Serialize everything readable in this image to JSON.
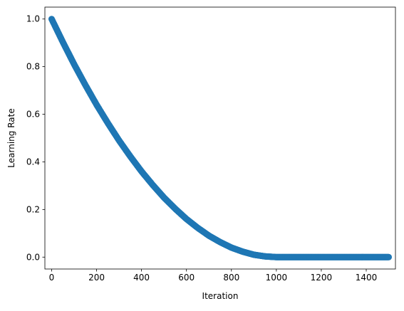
{
  "chart_data": {
    "type": "scatter",
    "title": "",
    "xlabel": "Iteration",
    "ylabel": "Learning Rate",
    "xlim": [
      -30,
      1530
    ],
    "ylim": [
      -0.05,
      1.05
    ],
    "xticks": [
      0,
      200,
      400,
      600,
      800,
      1000,
      1200,
      1400
    ],
    "yticks": [
      0.0,
      0.2,
      0.4,
      0.6,
      0.8,
      1.0
    ],
    "xtick_labels": [
      "0",
      "200",
      "400",
      "600",
      "800",
      "1000",
      "1200",
      "1400"
    ],
    "ytick_labels": [
      "0.0",
      "0.2",
      "0.4",
      "0.6",
      "0.8",
      "1.0"
    ],
    "grid": false,
    "legend": "none",
    "series": [
      {
        "color": "#1f77b4",
        "marker": "circle",
        "x": [
          0,
          50,
          100,
          150,
          200,
          250,
          300,
          350,
          400,
          450,
          500,
          550,
          600,
          650,
          700,
          750,
          800,
          850,
          900,
          950,
          1000,
          1050,
          1100,
          1150,
          1200,
          1250,
          1300,
          1350,
          1400,
          1450,
          1500
        ],
        "y": [
          1.0,
          0.903,
          0.81,
          0.723,
          0.64,
          0.563,
          0.49,
          0.423,
          0.36,
          0.303,
          0.25,
          0.203,
          0.16,
          0.123,
          0.09,
          0.063,
          0.04,
          0.023,
          0.01,
          0.003,
          0.0,
          0.0,
          0.0,
          0.0,
          0.0,
          0.0,
          0.0,
          0.0,
          0.0,
          0.0,
          0.0
        ]
      }
    ]
  }
}
